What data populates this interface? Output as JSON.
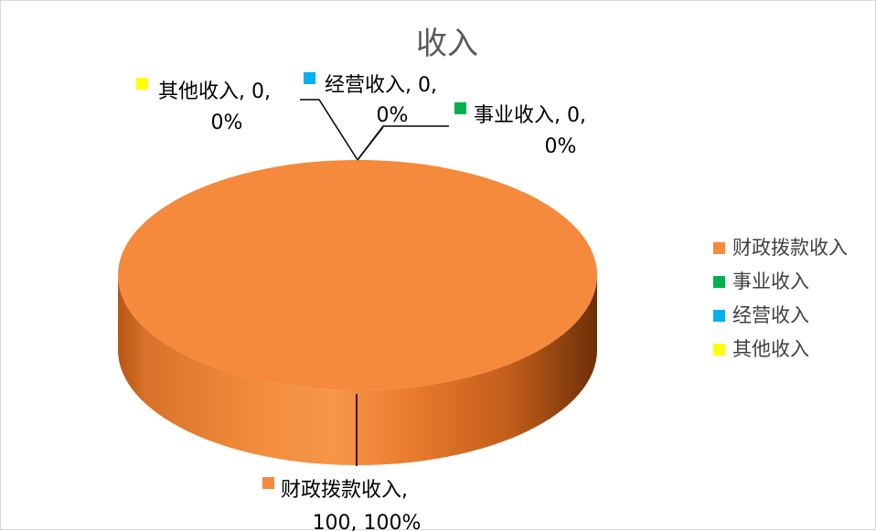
{
  "chart_data": {
    "type": "pie",
    "style": "3d",
    "title": "收入",
    "categories": [
      "财政拨款收入",
      "事业收入",
      "经营收入",
      "其他收入"
    ],
    "values": [
      100,
      0,
      0,
      0
    ],
    "percents": [
      "100%",
      "0%",
      "0%",
      "0%"
    ],
    "colors": [
      "#F58A3C",
      "#00B050",
      "#00B0F0",
      "#FFFF00"
    ],
    "legend_position": "right",
    "data_labels": [
      {
        "line1": "财政拨款收入,",
        "line2": "100, 100%"
      },
      {
        "line1": "事业收入, 0,",
        "line2": "0%"
      },
      {
        "line1": "经营收入, 0,",
        "line2": "0%"
      },
      {
        "line1": "其他收入, 0,",
        "line2": "0%"
      }
    ]
  }
}
